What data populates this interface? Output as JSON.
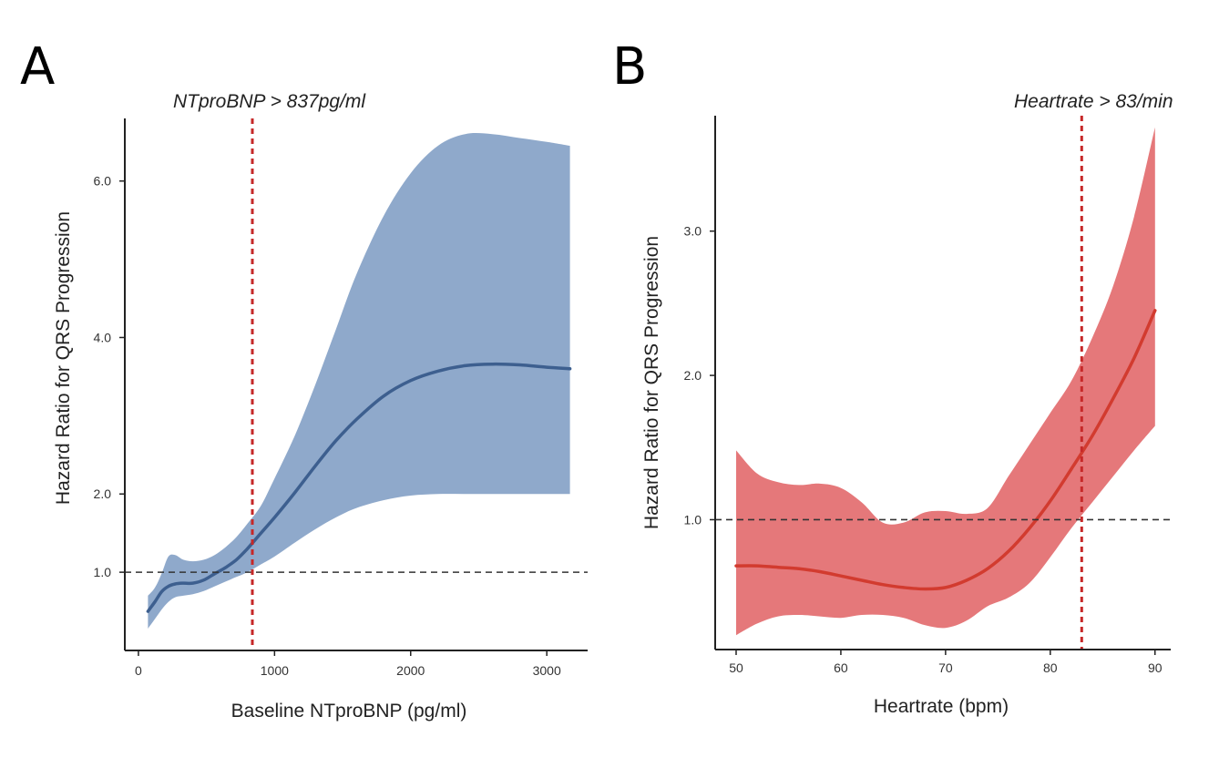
{
  "chart_data": [
    {
      "panel": "A",
      "type": "line",
      "annotation": "NTproBNP > 837pg/ml",
      "xlabel": "Baseline NTproBNP (pg/ml)",
      "ylabel": "Hazard Ratio for QRS Progression",
      "xlim": [
        -100,
        3300
      ],
      "ylim": [
        0.0,
        6.8
      ],
      "xticks": [
        0,
        1000,
        2000,
        3000
      ],
      "xtick_labels": [
        "0",
        "1000",
        "2000",
        "3000"
      ],
      "yticks": [
        1.0,
        2.0,
        4.0,
        6.0
      ],
      "ytick_labels": [
        "1.0",
        "2.0",
        "4.0",
        "6.0"
      ],
      "reference_hline": 1.0,
      "cutoff_vline": 837,
      "colors": {
        "line": "#3d5f8f",
        "band": "#8fa9cb",
        "cutoff": "#c62828",
        "reference": "#333333"
      },
      "series": [
        {
          "x": [
            70,
            120,
            170,
            220,
            270,
            330,
            400,
            480,
            560,
            640,
            720,
            800,
            900,
            1000,
            1150,
            1300,
            1450,
            1600,
            1800,
            2000,
            2200,
            2400,
            2600,
            2800,
            3000,
            3170
          ],
          "y": [
            0.5,
            0.62,
            0.75,
            0.82,
            0.85,
            0.86,
            0.86,
            0.9,
            0.98,
            1.06,
            1.16,
            1.3,
            1.5,
            1.7,
            2.02,
            2.36,
            2.68,
            2.95,
            3.25,
            3.45,
            3.57,
            3.64,
            3.66,
            3.65,
            3.62,
            3.6
          ],
          "lower": [
            0.28,
            0.4,
            0.52,
            0.62,
            0.68,
            0.7,
            0.72,
            0.76,
            0.82,
            0.88,
            0.94,
            1.0,
            1.1,
            1.2,
            1.38,
            1.55,
            1.7,
            1.82,
            1.92,
            1.98,
            2.0,
            2.0,
            2.0,
            2.0,
            2.0,
            2.0
          ],
          "upper": [
            0.7,
            0.8,
            0.98,
            1.2,
            1.22,
            1.16,
            1.14,
            1.16,
            1.22,
            1.32,
            1.45,
            1.62,
            1.85,
            2.2,
            2.75,
            3.4,
            4.1,
            4.8,
            5.55,
            6.1,
            6.45,
            6.6,
            6.6,
            6.55,
            6.5,
            6.45
          ]
        }
      ]
    },
    {
      "panel": "B",
      "type": "line",
      "annotation": "Heartrate > 83/min",
      "xlabel": "Heartrate (bpm)",
      "ylabel": "Hazard Ratio for QRS Progression",
      "xlim": [
        48,
        91.5
      ],
      "ylim": [
        0.1,
        3.8
      ],
      "xticks": [
        50,
        60,
        70,
        80,
        90
      ],
      "xtick_labels": [
        "50",
        "60",
        "70",
        "80",
        "90"
      ],
      "yticks": [
        1.0,
        2.0,
        3.0
      ],
      "ytick_labels": [
        "1.0",
        "2.0",
        "3.0"
      ],
      "reference_hline": 1.0,
      "cutoff_vline": 83,
      "colors": {
        "line": "#d23b2f",
        "band": "#e5787a",
        "cutoff": "#c62828",
        "reference": "#333333"
      },
      "series": [
        {
          "x": [
            50,
            52,
            54,
            56,
            58,
            60,
            62,
            64,
            66,
            68,
            70,
            72,
            74,
            76,
            78,
            80,
            82,
            84,
            86,
            88,
            90
          ],
          "y": [
            0.68,
            0.68,
            0.67,
            0.66,
            0.64,
            0.61,
            0.58,
            0.55,
            0.53,
            0.52,
            0.53,
            0.58,
            0.66,
            0.78,
            0.94,
            1.13,
            1.35,
            1.58,
            1.84,
            2.12,
            2.45
          ],
          "lower": [
            0.2,
            0.28,
            0.33,
            0.34,
            0.33,
            0.32,
            0.34,
            0.34,
            0.32,
            0.27,
            0.25,
            0.3,
            0.4,
            0.46,
            0.56,
            0.74,
            0.94,
            1.12,
            1.3,
            1.48,
            1.65
          ],
          "upper": [
            1.48,
            1.32,
            1.26,
            1.24,
            1.25,
            1.22,
            1.12,
            0.98,
            0.98,
            1.05,
            1.06,
            1.04,
            1.08,
            1.3,
            1.52,
            1.74,
            1.96,
            2.26,
            2.62,
            3.1,
            3.72
          ]
        }
      ]
    }
  ]
}
